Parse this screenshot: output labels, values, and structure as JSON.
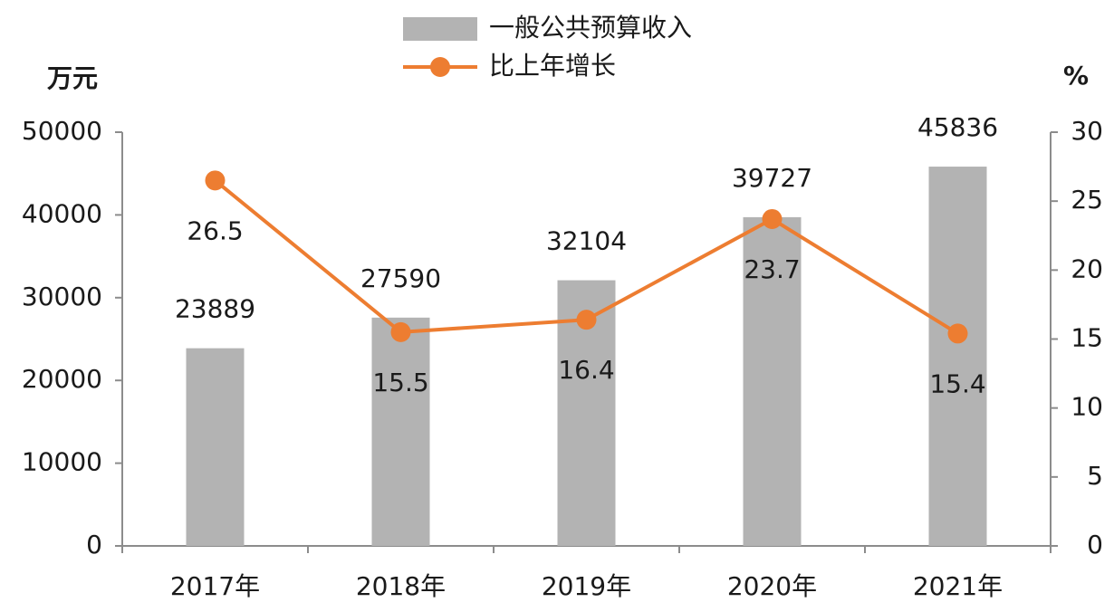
{
  "chart_data": {
    "type": "bar",
    "y_label": "万元",
    "y2_label": "%",
    "categories": [
      "2017年",
      "2018年",
      "2019年",
      "2020年",
      "2021年"
    ],
    "series": [
      {
        "name": "一般公共预算收入",
        "type": "bar",
        "color": "#b3b3b3",
        "values": [
          23889,
          27590,
          32104,
          39727,
          45836
        ]
      },
      {
        "name": "比上年增长",
        "type": "line",
        "axis": "y2",
        "color": "#ed7d31",
        "values": [
          26.5,
          15.5,
          16.4,
          23.7,
          15.4
        ]
      }
    ],
    "ylim": [
      0,
      50000
    ],
    "yticks": [
      0,
      10000,
      20000,
      30000,
      40000,
      50000
    ],
    "y2lim": [
      0,
      30
    ],
    "y2ticks": [
      0,
      5,
      10,
      15,
      20,
      25,
      30
    ],
    "grid": false
  }
}
